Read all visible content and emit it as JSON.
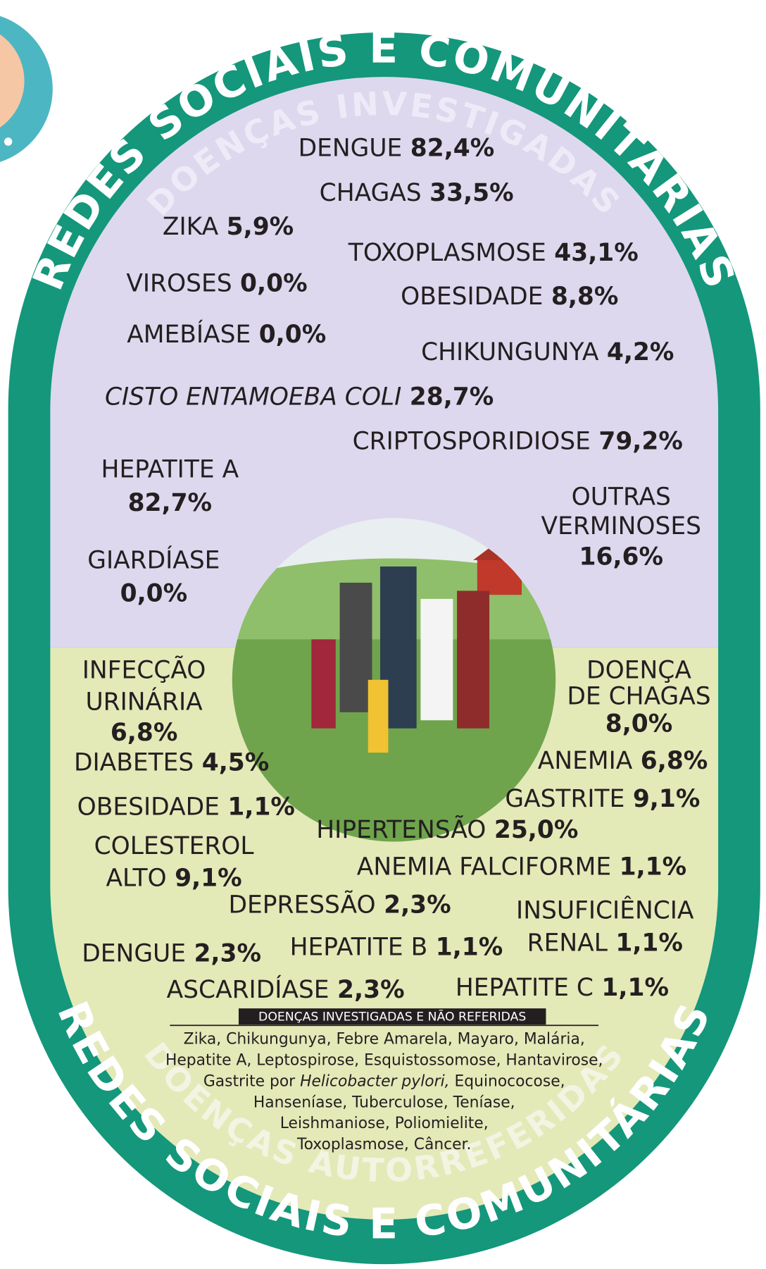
{
  "header": {
    "title": "REDES SOCIAIS E COMUNITÁRIAS",
    "subtitle": "DOENÇAS INVESTIGADAS"
  },
  "investigated": [
    {
      "name": [
        "DENGUE"
      ],
      "value": "82,4%"
    },
    {
      "name": [
        "CHAGAS"
      ],
      "value": "33,5%"
    },
    {
      "name": [
        "ZIKA"
      ],
      "value": "5,9%"
    },
    {
      "name": [
        "TOXOPLASMOSE"
      ],
      "value": "43,1%"
    },
    {
      "name": [
        "VIROSES"
      ],
      "value": "0,0%"
    },
    {
      "name": [
        "OBESIDADE"
      ],
      "value": "8,8%"
    },
    {
      "name": [
        "AMEBÍASE"
      ],
      "value": "0,0%"
    },
    {
      "name": [
        "CHIKUNGUNYA"
      ],
      "value": "4,2%"
    },
    {
      "name": [
        "CISTO ENTAMOEBA COLI"
      ],
      "value": "28,7%"
    },
    {
      "name": [
        "CRIPTOSPORIDIOSE"
      ],
      "value": "79,2%"
    },
    {
      "name": [
        "HEPATITE A"
      ],
      "value": "82,7%"
    },
    {
      "name": [
        "OUTRAS",
        "VERMINOSES"
      ],
      "value": "16,6%"
    },
    {
      "name": [
        "GIARDÍASE"
      ],
      "value": "0,0%"
    }
  ],
  "self_reported": [
    {
      "name": [
        "INFECÇÃO",
        "URINÁRIA"
      ],
      "value": "6,8%"
    },
    {
      "name": [
        "DOENÇA",
        "DE CHAGAS"
      ],
      "value": "8,0%"
    },
    {
      "name": [
        "DIABETES"
      ],
      "value": "4,5%"
    },
    {
      "name": [
        "ANEMIA"
      ],
      "value": "6,8%"
    },
    {
      "name": [
        "GASTRITE"
      ],
      "value": "9,1%"
    },
    {
      "name": [
        "OBESIDADE"
      ],
      "value": "1,1%"
    },
    {
      "name": [
        "HIPERTENSÃO"
      ],
      "value": "25,0%"
    },
    {
      "name": [
        "COLESTEROL",
        "ALTO"
      ],
      "value": "9,1%"
    },
    {
      "name": [
        "ANEMIA FALCIFORME"
      ],
      "value": "1,1%"
    },
    {
      "name": [
        "DEPRESSÃO"
      ],
      "value": "2,3%"
    },
    {
      "name": [
        "INSUFICIÊNCIA",
        "RENAL"
      ],
      "value": "1,1%"
    },
    {
      "name": [
        "DENGUE"
      ],
      "value": "2,3%"
    },
    {
      "name": [
        "HEPATITE B"
      ],
      "value": "1,1%"
    },
    {
      "name": [
        "ASCARIDÍASE"
      ],
      "value": "2,3%"
    },
    {
      "name": [
        "HEPATITE C"
      ],
      "value": "1,1%"
    }
  ],
  "not_reported": {
    "title": "DOENÇAS INVESTIGADAS E NÃO REFERIDAS",
    "lines": [
      [
        "Zika, Chikungunya, Febre Amarela, Mayaro, Malária,"
      ],
      [
        "Hepatite A, Leptospirose, Esquistossomose, Hantavirose,"
      ],
      [
        "Gastrite por ",
        "Helicobacter pylori,",
        " Equinococose,"
      ],
      [
        "Hanseníase, Tuberculose, Teníase,"
      ],
      [
        "Leishmaniose, Poliomielite,"
      ],
      [
        "Toxoplasmose, Câncer."
      ]
    ]
  },
  "footer": {
    "title": "REDES SOCIAIS E COMUNITÁRIAS",
    "subtitle": "DOENÇAS AUTORREFERIDAS"
  }
}
